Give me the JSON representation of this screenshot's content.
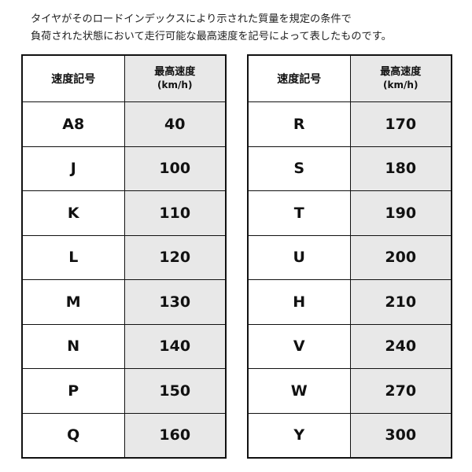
{
  "intro": {
    "line1": "タイヤがそのロードインデックスにより示された質量を規定の条件で",
    "line2": "負荷された状態において走行可能な最高速度を記号によって表したものです。"
  },
  "table_header": {
    "symbol": "速度記号",
    "speed": "最高速度",
    "unit": "(km/h)"
  },
  "left_rows": [
    {
      "symbol": "A8",
      "speed": "40"
    },
    {
      "symbol": "J",
      "speed": "100"
    },
    {
      "symbol": "K",
      "speed": "110"
    },
    {
      "symbol": "L",
      "speed": "120"
    },
    {
      "symbol": "M",
      "speed": "130"
    },
    {
      "symbol": "N",
      "speed": "140"
    },
    {
      "symbol": "P",
      "speed": "150"
    },
    {
      "symbol": "Q",
      "speed": "160"
    }
  ],
  "right_rows": [
    {
      "symbol": "R",
      "speed": "170"
    },
    {
      "symbol": "S",
      "speed": "180"
    },
    {
      "symbol": "T",
      "speed": "190"
    },
    {
      "symbol": "U",
      "speed": "200"
    },
    {
      "symbol": "H",
      "speed": "210"
    },
    {
      "symbol": "V",
      "speed": "240"
    },
    {
      "symbol": "W",
      "speed": "270"
    },
    {
      "symbol": "Y",
      "speed": "300"
    }
  ],
  "colors": {
    "speed_column_bg": "#e8e8e8",
    "border": "#111111"
  }
}
